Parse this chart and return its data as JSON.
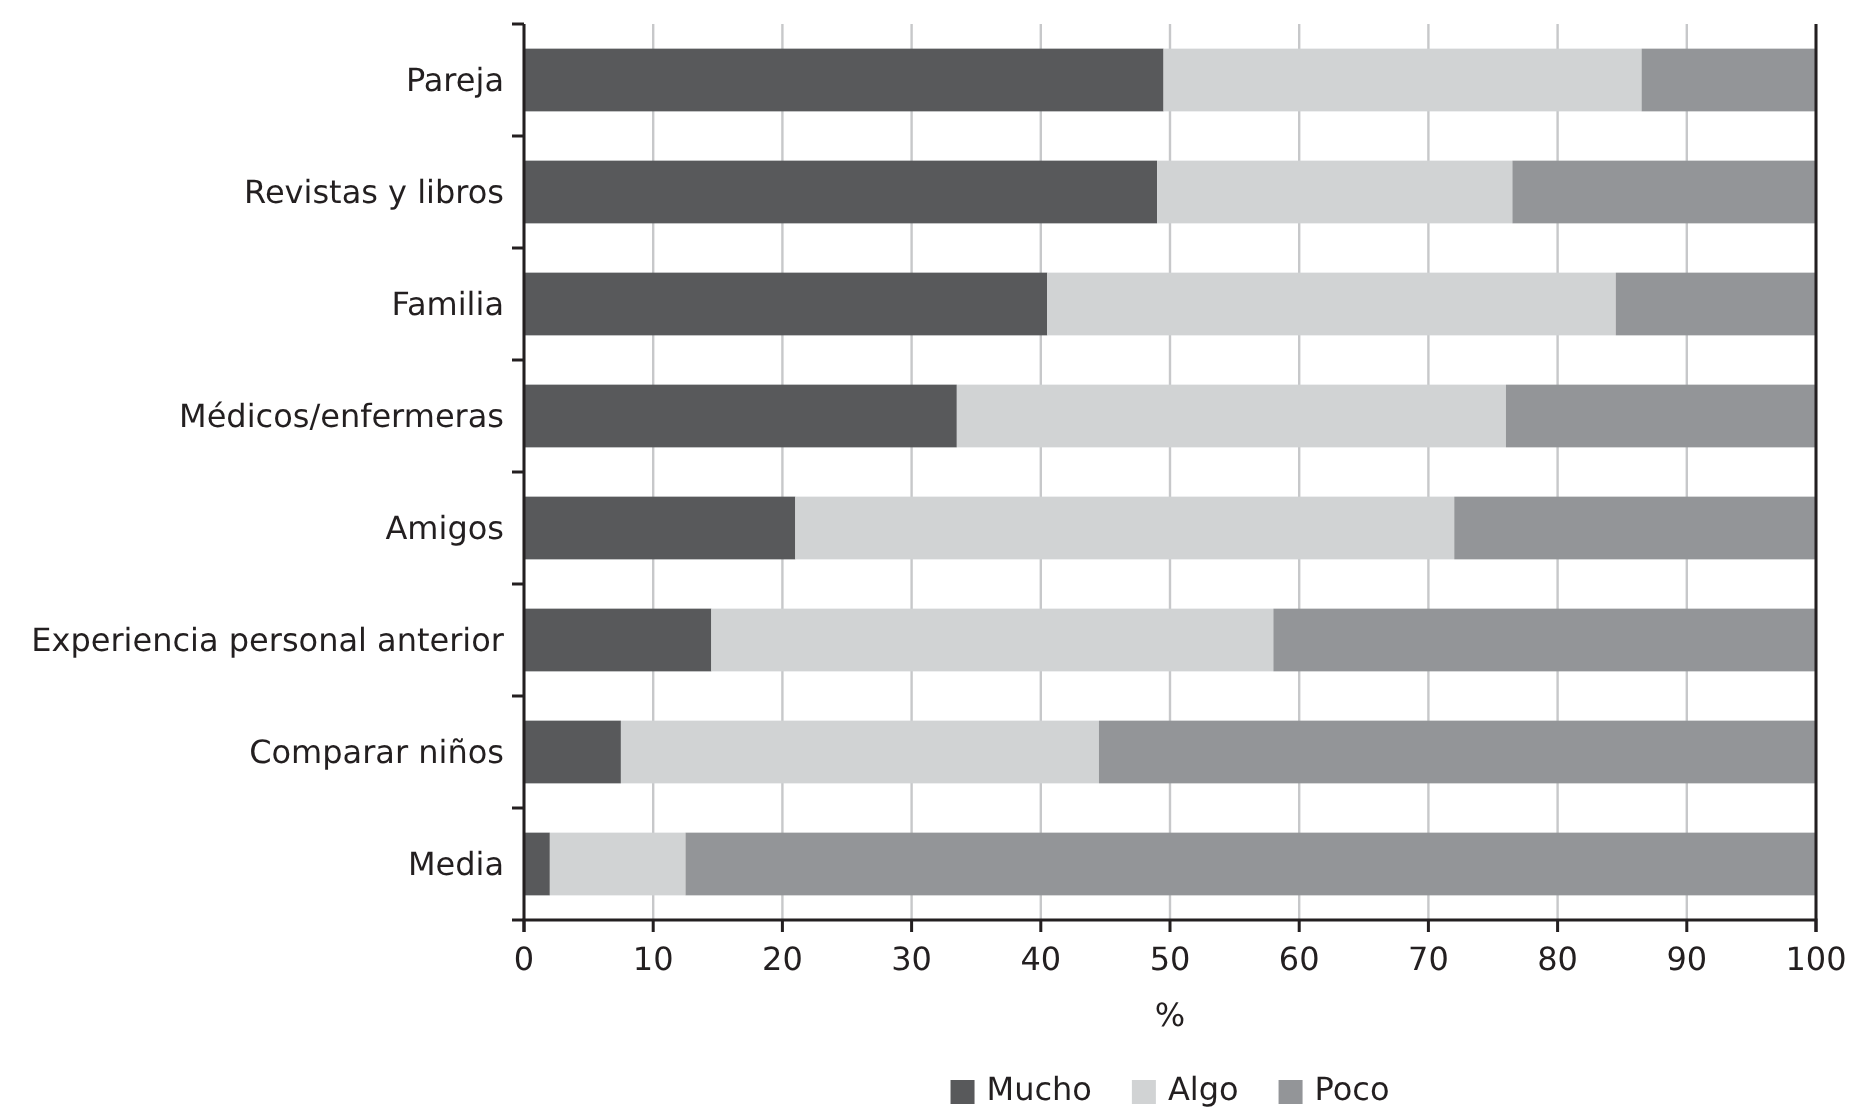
{
  "chart_data": {
    "type": "bar",
    "orientation": "horizontal",
    "stacked": true,
    "categories": [
      "Pareja",
      "Revistas y libros",
      "Familia",
      "Médicos/enfermeras",
      "Amigos",
      "Experiencia personal anterior",
      "Comparar niños",
      "Media"
    ],
    "series": [
      {
        "name": "Mucho",
        "color": "#58595b",
        "values": [
          49.5,
          49,
          40.5,
          33.5,
          21,
          14.5,
          7.5,
          2
        ]
      },
      {
        "name": "Algo",
        "color": "#d1d3d4",
        "values": [
          37,
          27.5,
          44,
          42.5,
          51,
          43.5,
          37,
          10.5
        ]
      },
      {
        "name": "Poco",
        "color": "#939598",
        "values": [
          13.5,
          23.5,
          15.5,
          24,
          28,
          42,
          55.5,
          87.5
        ]
      }
    ],
    "xlabel": "%",
    "xlim": [
      0,
      100
    ],
    "xticks": [
      0,
      10,
      20,
      30,
      40,
      50,
      60,
      70,
      80,
      90,
      100
    ],
    "grid": "x",
    "legend": "bottom"
  }
}
